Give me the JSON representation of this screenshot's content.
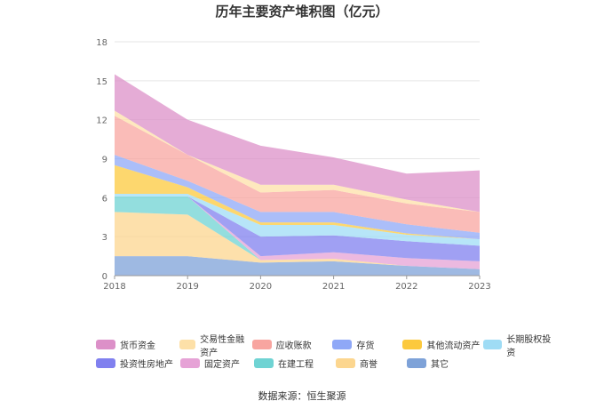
{
  "chart_data": {
    "type": "area",
    "stacked": true,
    "title": "历年主要资产堆积图（亿元）",
    "xlabel": "",
    "ylabel": "",
    "categories": [
      "2018",
      "2019",
      "2020",
      "2021",
      "2022",
      "2023"
    ],
    "y_ticks": [
      "0",
      "3",
      "6",
      "9",
      "12",
      "15",
      "18"
    ],
    "ylim": [
      0,
      18
    ],
    "grid": true,
    "legend_position": "bottom",
    "series": [
      {
        "name": "其它",
        "color": "#7ea2d8",
        "values": [
          1.5,
          1.5,
          1.0,
          1.1,
          0.75,
          0.5
        ]
      },
      {
        "name": "商誉",
        "color": "#fcd68f",
        "values": [
          3.4,
          3.2,
          0.2,
          0.2,
          0.0,
          0.0
        ]
      },
      {
        "name": "在建工程",
        "color": "#6fd3d3",
        "values": [
          1.2,
          1.4,
          0.0,
          0.0,
          0.0,
          0.0
        ]
      },
      {
        "name": "固定资产",
        "color": "#e6a2d6",
        "values": [
          0.0,
          0.0,
          0.3,
          0.5,
          0.6,
          0.6
        ]
      },
      {
        "name": "投资性房地产",
        "color": "#8080ef",
        "values": [
          0.0,
          0.0,
          1.5,
          1.3,
          1.3,
          1.2
        ]
      },
      {
        "name": "长期股权投资",
        "color": "#9fdcf5",
        "values": [
          0.2,
          0.2,
          0.9,
          0.8,
          0.5,
          0.5
        ]
      },
      {
        "name": "其他流动资产",
        "color": "#fcc93d",
        "values": [
          2.2,
          0.5,
          0.2,
          0.2,
          0.1,
          0.0
        ]
      },
      {
        "name": "存货",
        "color": "#8fa8f7",
        "values": [
          0.8,
          0.5,
          0.8,
          0.8,
          0.7,
          0.5
        ]
      },
      {
        "name": "应收账款",
        "color": "#f8a5a0",
        "values": [
          3.0,
          2.0,
          1.5,
          1.7,
          1.6,
          1.6
        ]
      },
      {
        "name": "交易性金融资产",
        "color": "#fde0a8",
        "values": [
          0.4,
          0.0,
          0.6,
          0.4,
          0.3,
          0.0
        ]
      },
      {
        "name": "货币资金",
        "color": "#dc90c8",
        "values": [
          2.8,
          2.7,
          3.0,
          2.1,
          2.0,
          3.2
        ]
      }
    ]
  },
  "legend_rows": [
    [
      "货币资金",
      "交易性金融资产",
      "应收账款",
      "存货",
      "其他流动资产",
      "长期股权投资"
    ],
    [
      "投资性房地产",
      "固定资产",
      "在建工程",
      "商誉",
      "其它"
    ]
  ],
  "source": "数据来源：恒生聚源"
}
